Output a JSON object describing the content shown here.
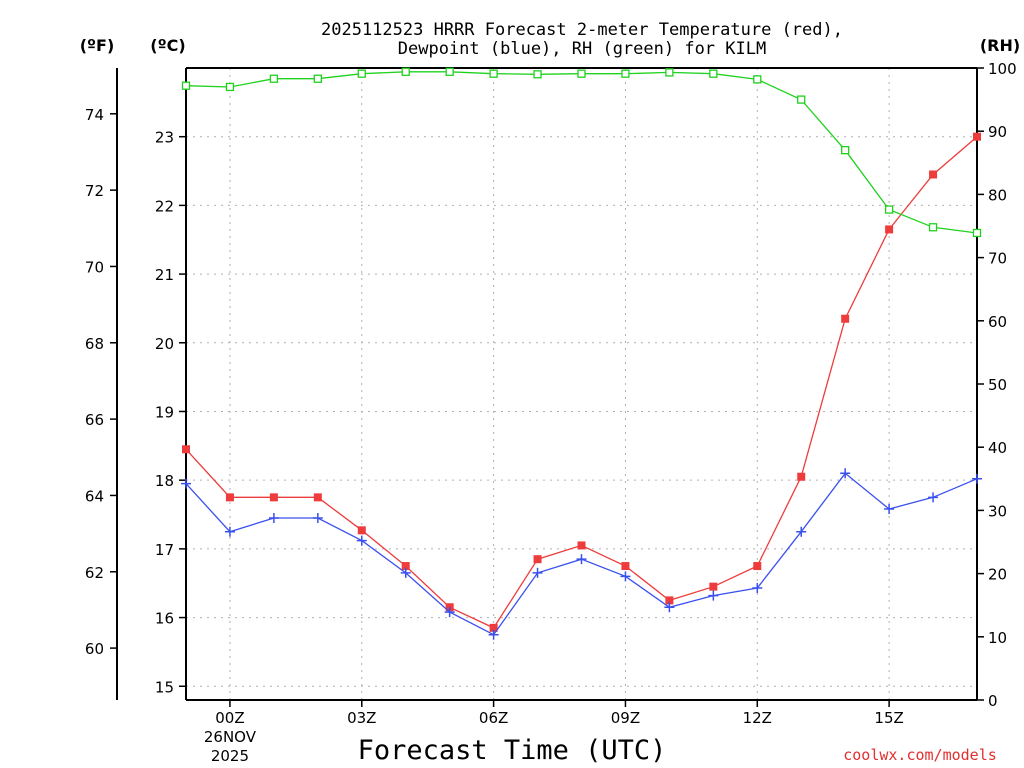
{
  "chart_data": {
    "type": "line",
    "title": "2025112523 HRRR Forecast 2-meter Temperature (red),",
    "title_line2": "Dewpoint (blue), RH (green) for KILM",
    "xlabel": "Forecast Time (UTC)",
    "credit": "coolwx.com/models",
    "units": {
      "left_outer": "(ºF)",
      "left_inner": "(ºC)",
      "right": "(RH)"
    },
    "x_hours": [
      -1,
      0,
      1,
      2,
      3,
      4,
      5,
      6,
      7,
      8,
      9,
      10,
      11,
      12,
      13,
      14,
      15,
      16,
      17
    ],
    "x_range_hours": [
      -1,
      17
    ],
    "x_ticks": [
      {
        "hour": 0,
        "label": "00Z",
        "date": "26NOV",
        "year": "2025"
      },
      {
        "hour": 3,
        "label": "03Z"
      },
      {
        "hour": 6,
        "label": "06Z"
      },
      {
        "hour": 9,
        "label": "09Z"
      },
      {
        "hour": 12,
        "label": "12Z"
      },
      {
        "hour": 15,
        "label": "15Z"
      }
    ],
    "celsius_axis": {
      "range": [
        14.8,
        24.0
      ],
      "ticks": [
        15,
        16,
        17,
        18,
        19,
        20,
        21,
        22,
        23
      ]
    },
    "fahrenheit_axis": {
      "ticks": [
        60,
        62,
        64,
        66,
        68,
        70,
        72,
        74
      ]
    },
    "rh_axis": {
      "range": [
        0,
        100
      ],
      "ticks": [
        0,
        10,
        20,
        30,
        40,
        50,
        60,
        70,
        80,
        90,
        100
      ]
    },
    "series": [
      {
        "name": "Temperature",
        "units": "C",
        "color": "#ee3b3b",
        "marker": "filled-square",
        "values": [
          18.45,
          17.75,
          17.75,
          17.75,
          17.27,
          16.75,
          16.15,
          15.85,
          16.85,
          17.05,
          16.75,
          16.25,
          16.45,
          16.75,
          18.05,
          20.35,
          21.65,
          22.45,
          23.0
        ]
      },
      {
        "name": "Dewpoint",
        "units": "C",
        "color": "#3a50ee",
        "marker": "plus",
        "values": [
          17.95,
          17.25,
          17.45,
          17.45,
          17.12,
          16.65,
          16.08,
          15.75,
          16.65,
          16.85,
          16.6,
          16.15,
          16.32,
          16.43,
          17.25,
          18.1,
          17.58,
          17.75,
          18.02
        ]
      },
      {
        "name": "RH",
        "units": "%",
        "color": "#1ed21e",
        "marker": "open-square",
        "values": [
          97.2,
          97.0,
          98.3,
          98.3,
          99.1,
          99.4,
          99.4,
          99.1,
          99.0,
          99.1,
          99.1,
          99.3,
          99.1,
          98.2,
          95.0,
          87.0,
          77.6,
          74.8,
          73.9
        ]
      }
    ]
  }
}
